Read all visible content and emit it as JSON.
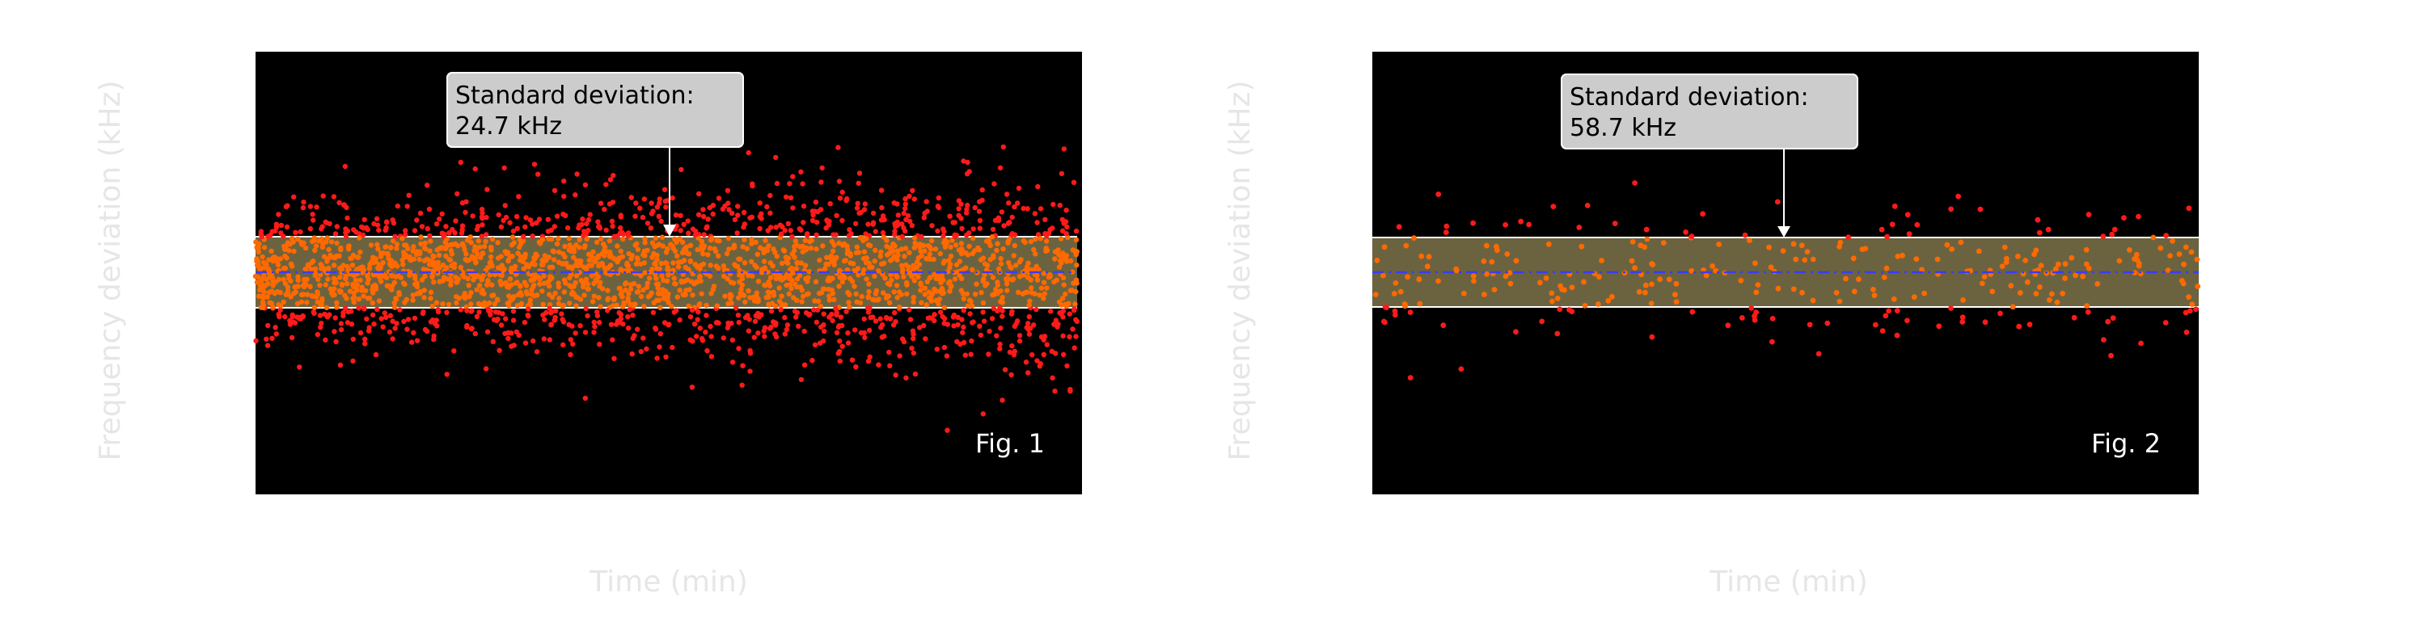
{
  "chart_data": [
    {
      "type": "scatter",
      "xlabel": "Time (min)",
      "ylabel": "Frequency deviation (kHz)",
      "panel_label": "Fig. 1",
      "annotation": {
        "line1": "Standard deviation:",
        "line2": "24.7 kHz"
      },
      "std_khz": 24.7,
      "ylim": [
        -140,
        140
      ],
      "xlim": [
        0,
        100
      ],
      "mean": 0,
      "band": [
        -24.7,
        24.7
      ],
      "point_count": 2600,
      "grid": false,
      "legend": "none",
      "colors": {
        "background": "#000000",
        "band_fill": "#6b6340",
        "band_edge": "#ffffff",
        "point_outside": "#ff1a1a",
        "point_inside": "#ff6a00",
        "mean_line": "#3b3bff",
        "label_text": "#e6e6e6",
        "annotation_box": "#cccccc"
      }
    },
    {
      "type": "scatter",
      "xlabel": "Time (min)",
      "ylabel": "Frequency deviation (kHz)",
      "panel_label": "Fig. 2",
      "annotation": {
        "line1": "Standard deviation:",
        "line2": "58.7 kHz"
      },
      "std_khz": 58.7,
      "ylim": [
        -340,
        340
      ],
      "xlim": [
        0,
        100
      ],
      "mean": 0,
      "band": [
        -58.7,
        58.7
      ],
      "point_count": 300,
      "grid": false,
      "legend": "none",
      "colors": {
        "background": "#000000",
        "band_fill": "#6b6340",
        "band_edge": "#ffffff",
        "point_outside": "#ff1a1a",
        "point_inside": "#ff6a00",
        "mean_line": "#3b3bff",
        "label_text": "#e6e6e6",
        "annotation_box": "#cccccc"
      }
    }
  ]
}
